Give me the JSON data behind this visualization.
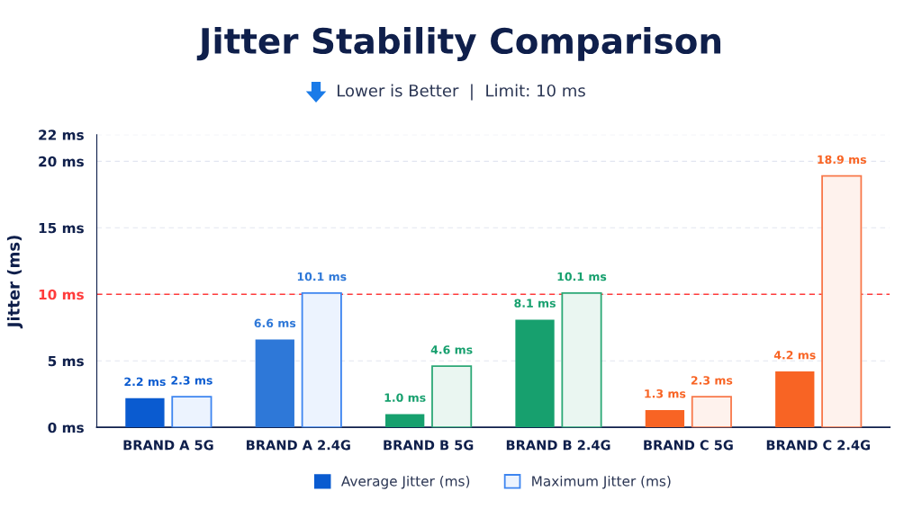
{
  "chart_data": {
    "type": "bar",
    "title": "Jitter Stability Comparison",
    "subtitle": "Lower is Better  |  Limit: 10 ms",
    "ylabel": "Jitter (ms)",
    "categories": [
      "BRAND A 5G",
      "BRAND A 2.4G",
      "BRAND B 5G",
      "BRAND B 2.4G",
      "BRAND C 5G",
      "BRAND C 2.4G"
    ],
    "series": [
      {
        "name": "Average Jitter (ms)",
        "color": "#0a5bd0",
        "colors": [
          "#0a5bd0",
          "#2e78d8",
          "#17a06e",
          "#17a06e",
          "#f86424",
          "#f86424"
        ],
        "values": [
          2.2,
          6.6,
          1.0,
          8.1,
          1.3,
          4.2
        ],
        "value_labels": [
          "2.2 ms",
          "6.6 ms",
          "1.0 ms",
          "8.1 ms",
          "1.3 ms",
          "4.2 ms"
        ]
      },
      {
        "name": "Maximum Jitter (ms)",
        "color": "#3d85f0",
        "colors": [
          "#3d85f0",
          "#3d85f0",
          "#2ba876",
          "#2ba876",
          "#f8784a",
          "#f8784a"
        ],
        "values": [
          2.3,
          10.1,
          4.6,
          10.1,
          2.3,
          18.9
        ],
        "value_labels": [
          "2.3 ms",
          "10.1 ms",
          "4.6 ms",
          "10.1 ms",
          "2.3 ms",
          "18.9 ms"
        ]
      }
    ],
    "ylim": [
      0,
      22
    ],
    "yticks": [
      {
        "value": 0,
        "label": "0 ms"
      },
      {
        "value": 5,
        "label": "5 ms"
      },
      {
        "value": 10,
        "label": "10 ms"
      },
      {
        "value": 15,
        "label": "15 ms"
      },
      {
        "value": 20,
        "label": "20 ms"
      },
      {
        "value": 22,
        "label": "22 ms"
      }
    ],
    "ref_lines": [
      {
        "axis": "y",
        "value": 10,
        "label": null,
        "color": "#ff3b3b",
        "line_style": "dashed"
      }
    ],
    "grid": "y",
    "legend": "bottom"
  }
}
